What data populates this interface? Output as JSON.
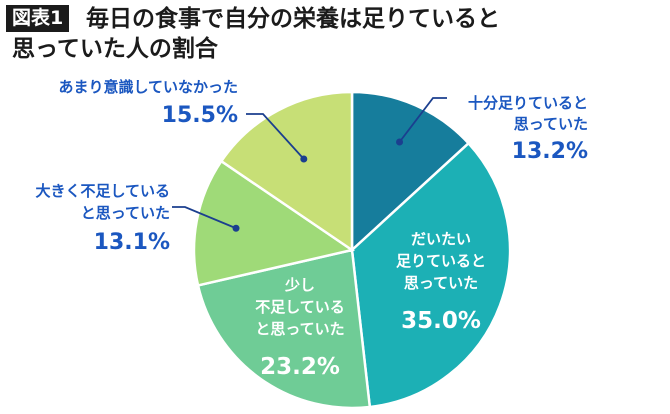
{
  "header": {
    "badge": "図表1",
    "title_line1": "毎日の食事で自分の栄養は足りていると",
    "title_line2": "思っていた人の割合"
  },
  "chart_data": {
    "type": "pie",
    "start_angle_deg": 0,
    "direction": "clockwise",
    "slices": [
      {
        "label": "十分足りていると思っていた",
        "label_lines": [
          "十分足りていると",
          "思っていた"
        ],
        "value": 13.2,
        "value_text": "13.2%",
        "color": "#167d9c"
      },
      {
        "label": "だいたい足りていると思っていた",
        "label_lines": [
          "だいたい",
          "足りていると",
          "思っていた"
        ],
        "value": 35.0,
        "value_text": "35.0%",
        "color": "#1cb0b5"
      },
      {
        "label": "少し不足していると思っていた",
        "label_lines": [
          "少し",
          "不足している",
          "と思っていた"
        ],
        "value": 23.2,
        "value_text": "23.2%",
        "color": "#6fcc96"
      },
      {
        "label": "大きく不足していると思っていた",
        "label_lines": [
          "大きく不足している",
          "と思っていた"
        ],
        "value": 13.1,
        "value_text": "13.1%",
        "color": "#9fda78"
      },
      {
        "label": "あまり意識していなかった",
        "label_lines": [
          "あまり意識していなかった"
        ],
        "value": 15.5,
        "value_text": "15.5%",
        "color": "#c7df76"
      }
    ],
    "label_text_color": "#1b57c0",
    "inside_text_color": "#ffffff",
    "legend": "none"
  }
}
